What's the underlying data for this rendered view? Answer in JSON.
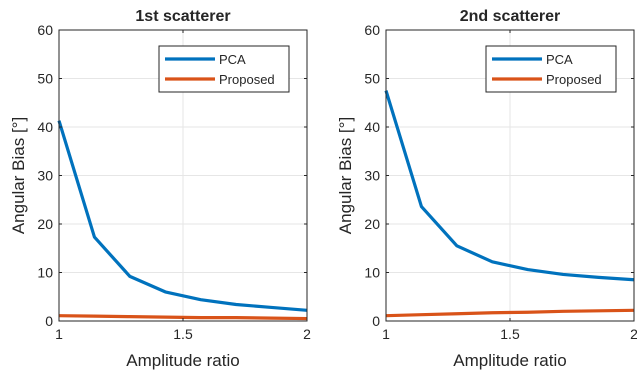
{
  "chart_data": [
    {
      "type": "line",
      "title": "1st scatterer",
      "xlabel": "Amplitude ratio",
      "ylabel": "Angular Bias [°]",
      "xlim": [
        1,
        2
      ],
      "ylim": [
        0,
        60
      ],
      "xticks": [
        1,
        1.5,
        2
      ],
      "xtick_labels": [
        "1",
        "1.5",
        "2"
      ],
      "yticks": [
        0,
        10,
        20,
        30,
        40,
        50,
        60
      ],
      "ytick_labels": [
        "0",
        "10",
        "20",
        "30",
        "40",
        "50",
        "60"
      ],
      "grid": true,
      "legend_position": "top-right",
      "x": [
        1,
        1.1429,
        1.2857,
        1.4286,
        1.5714,
        1.7143,
        1.8571,
        2
      ],
      "series": [
        {
          "name": "PCA",
          "color": "#0072BD",
          "values": [
            41.3,
            17.3,
            9.2,
            6.0,
            4.4,
            3.4,
            2.8,
            2.2
          ]
        },
        {
          "name": "Proposed",
          "color": "#D95319",
          "values": [
            1.1,
            1.0,
            0.9,
            0.8,
            0.7,
            0.7,
            0.6,
            0.5
          ]
        }
      ]
    },
    {
      "type": "line",
      "title": "2nd scatterer",
      "xlabel": "Amplitude ratio",
      "ylabel": "Angular Bias [°]",
      "xlim": [
        1,
        2
      ],
      "ylim": [
        0,
        60
      ],
      "xticks": [
        1,
        1.5,
        2
      ],
      "xtick_labels": [
        "1",
        "1.5",
        "2"
      ],
      "yticks": [
        0,
        10,
        20,
        30,
        40,
        50,
        60
      ],
      "ytick_labels": [
        "0",
        "10",
        "20",
        "30",
        "40",
        "50",
        "60"
      ],
      "grid": true,
      "legend_position": "top-right",
      "x": [
        1,
        1.1429,
        1.2857,
        1.4286,
        1.5714,
        1.7143,
        1.8571,
        2
      ],
      "series": [
        {
          "name": "PCA",
          "color": "#0072BD",
          "values": [
            47.5,
            23.6,
            15.5,
            12.2,
            10.6,
            9.6,
            9.0,
            8.5
          ]
        },
        {
          "name": "Proposed",
          "color": "#D95319",
          "values": [
            1.1,
            1.3,
            1.5,
            1.7,
            1.8,
            2.0,
            2.1,
            2.2
          ]
        }
      ]
    }
  ]
}
